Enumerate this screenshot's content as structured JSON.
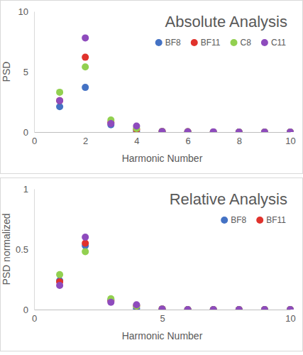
{
  "chart_data": [
    {
      "type": "scatter",
      "title": "Absolute Analysis",
      "x_label": "Harmonic Number",
      "y_label": "PSD",
      "x": [
        1,
        2,
        3,
        4,
        5,
        6,
        7,
        8,
        9,
        10
      ],
      "series": [
        {
          "name": "BF8",
          "color": "#4472c4",
          "values": [
            2.1,
            3.7,
            0.6,
            0.05,
            0,
            0,
            0,
            0,
            0,
            0
          ]
        },
        {
          "name": "BF11",
          "color": "#e0322c",
          "values": [
            2.6,
            6.2,
            0.8,
            0.2,
            0.05,
            0.03,
            0,
            0,
            0,
            0
          ]
        },
        {
          "name": "C8",
          "color": "#92d050",
          "values": [
            3.3,
            5.4,
            1.0,
            0.3,
            0.05,
            0.03,
            0,
            0,
            0,
            0
          ]
        },
        {
          "name": "C11",
          "color": "#8e4bbd",
          "values": [
            2.6,
            7.8,
            0.7,
            0.5,
            0.05,
            0.03,
            0.02,
            0,
            0,
            0
          ]
        }
      ],
      "xlim": [
        0,
        10
      ],
      "xticks": [
        0,
        2,
        4,
        6,
        8,
        10
      ],
      "ylim": [
        0,
        10
      ],
      "yticks": [
        0,
        5,
        10
      ],
      "legend": "top-right",
      "marker": "circle"
    },
    {
      "type": "scatter",
      "title": "Relative Analysis",
      "x_label": "Harmonic Number",
      "y_label": "PSD normalized",
      "x": [
        1,
        2,
        3,
        4,
        5,
        6,
        7,
        8,
        9,
        10
      ],
      "series": [
        {
          "name": "BF8",
          "color": "#4472c4",
          "values": [
            0.24,
            0.53,
            0.08,
            0.01,
            0,
            0,
            0,
            0,
            0,
            0
          ]
        },
        {
          "name": "BF11",
          "color": "#e0322c",
          "values": [
            0.23,
            0.55,
            0.07,
            0.03,
            0.005,
            0,
            0,
            0,
            0,
            0
          ]
        },
        {
          "color": "#92d050",
          "values": [
            0.29,
            0.48,
            0.09,
            0.03,
            0.005,
            0,
            0,
            0,
            0,
            0
          ]
        },
        {
          "color": "#8e4bbd",
          "values": [
            0.2,
            0.6,
            0.06,
            0.04,
            0.005,
            0,
            0,
            0,
            0,
            0
          ]
        }
      ],
      "xlim": [
        0,
        10
      ],
      "xticks": [
        0,
        5,
        10
      ],
      "ylim": [
        0,
        1
      ],
      "yticks": [
        0,
        0.5,
        1
      ],
      "legend": "top-right",
      "marker": "circle"
    }
  ]
}
